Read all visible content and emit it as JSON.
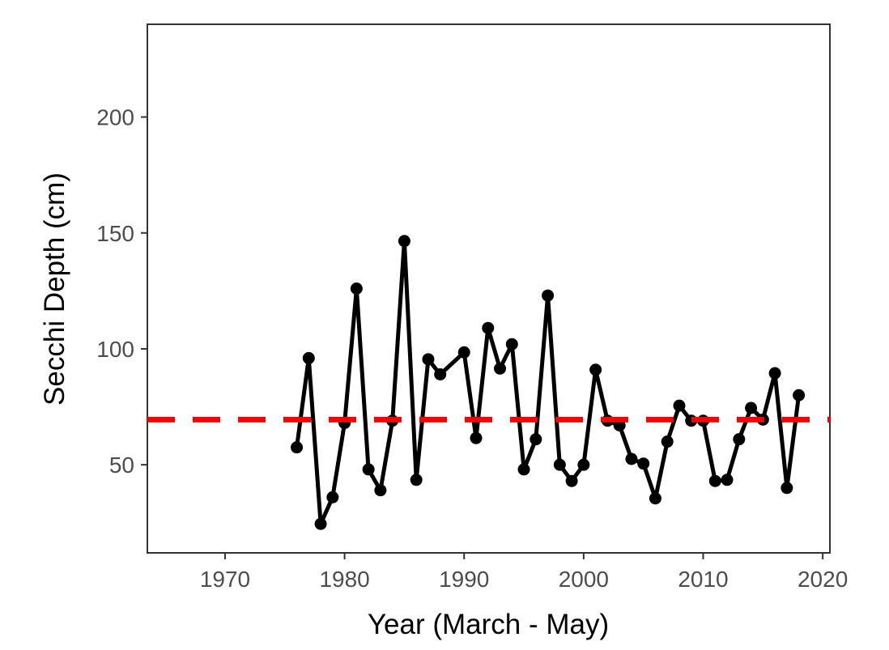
{
  "chart_data": {
    "type": "line",
    "title": "",
    "xlabel": "Year (March - May)",
    "ylabel": "Secchi Depth (cm)",
    "xlim": [
      1963.5,
      2020.6
    ],
    "ylim": [
      12,
      240
    ],
    "x_ticks": [
      1970,
      1980,
      1990,
      2000,
      2010,
      2020
    ],
    "y_ticks": [
      50,
      100,
      150,
      200
    ],
    "grid": false,
    "legend": "none",
    "series": [
      {
        "color": "#000000",
        "marker": "circle",
        "x": [
          1976,
          1977,
          1978,
          1979,
          1980,
          1981,
          1982,
          1983,
          1984,
          1985,
          1986,
          1987,
          1988,
          1990,
          1991,
          1992,
          1993,
          1994,
          1995,
          1996,
          1997,
          1998,
          1999,
          2000,
          2001,
          2002,
          2003,
          2004,
          2005,
          2006,
          2007,
          2008,
          2009,
          2010,
          2011,
          2012,
          2013,
          2014,
          2015,
          2016,
          2017,
          2018
        ],
        "y": [
          57.5,
          96,
          24.5,
          36,
          68,
          126,
          48,
          39,
          69,
          146.5,
          43.5,
          95.5,
          89,
          98.5,
          61.5,
          109,
          91.5,
          102,
          48,
          61,
          123,
          50,
          43,
          50,
          91,
          69,
          67,
          52.5,
          50.5,
          35.5,
          60,
          75.5,
          69,
          69,
          43,
          43.5,
          61,
          74.5,
          69.5,
          89.5,
          40,
          80
        ]
      }
    ],
    "reference_line": {
      "orientation": "horizontal",
      "y": 69.5,
      "style": "dashed",
      "color": "#ff0000"
    }
  }
}
